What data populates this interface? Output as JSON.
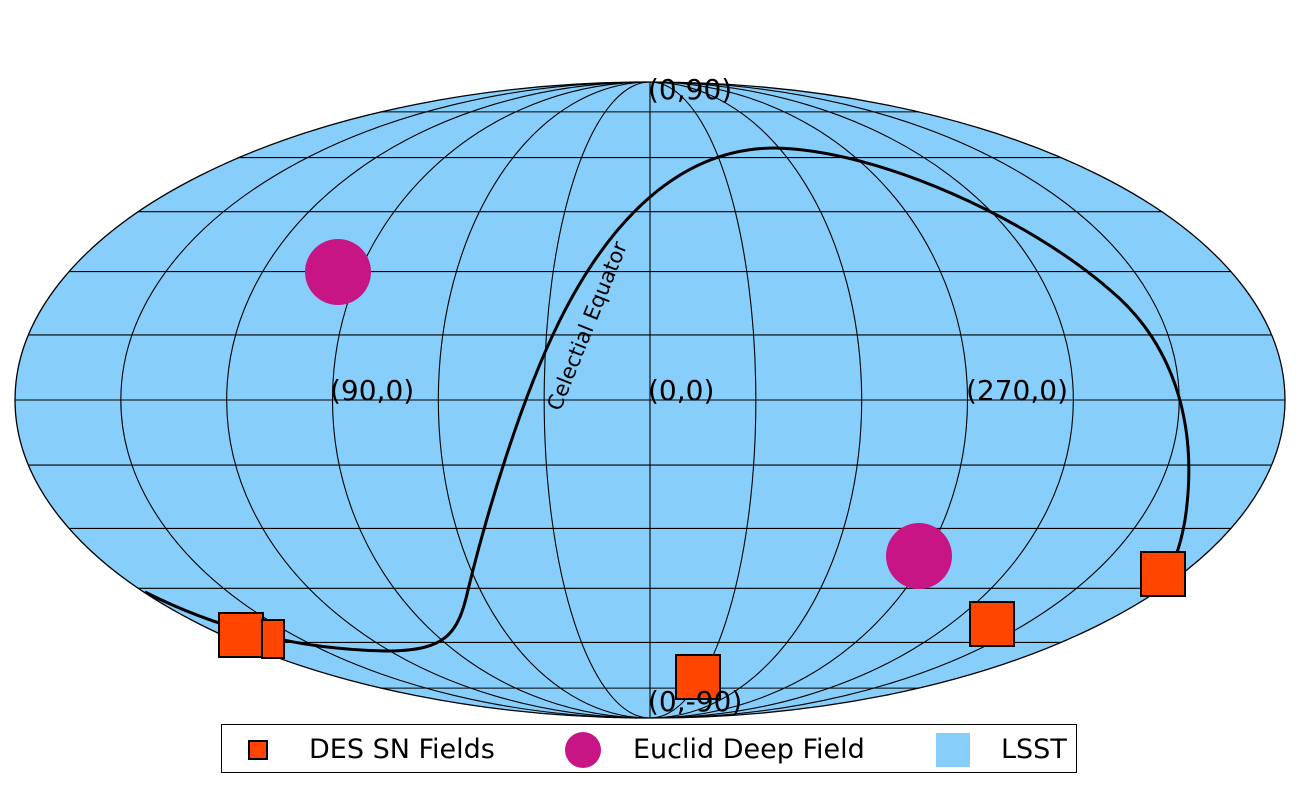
{
  "map": {
    "projection": "mollweide",
    "labels": {
      "north_pole": "(0,90)",
      "south_pole": "(0,-90)",
      "lon90": "(90,0)",
      "center": "(0,0)",
      "lon270": "(270,0)",
      "equator_curve": "Celectial Equator"
    },
    "colors": {
      "lsst": "#87cefa",
      "des": "#ff4500",
      "euclid": "#c71585",
      "line": "#000000"
    }
  },
  "legend": {
    "items": [
      {
        "label": "DES SN Fields",
        "symbol": "square"
      },
      {
        "label": "Euclid Deep Field",
        "symbol": "circle"
      },
      {
        "label": "LSST",
        "symbol": "patch"
      }
    ]
  }
}
